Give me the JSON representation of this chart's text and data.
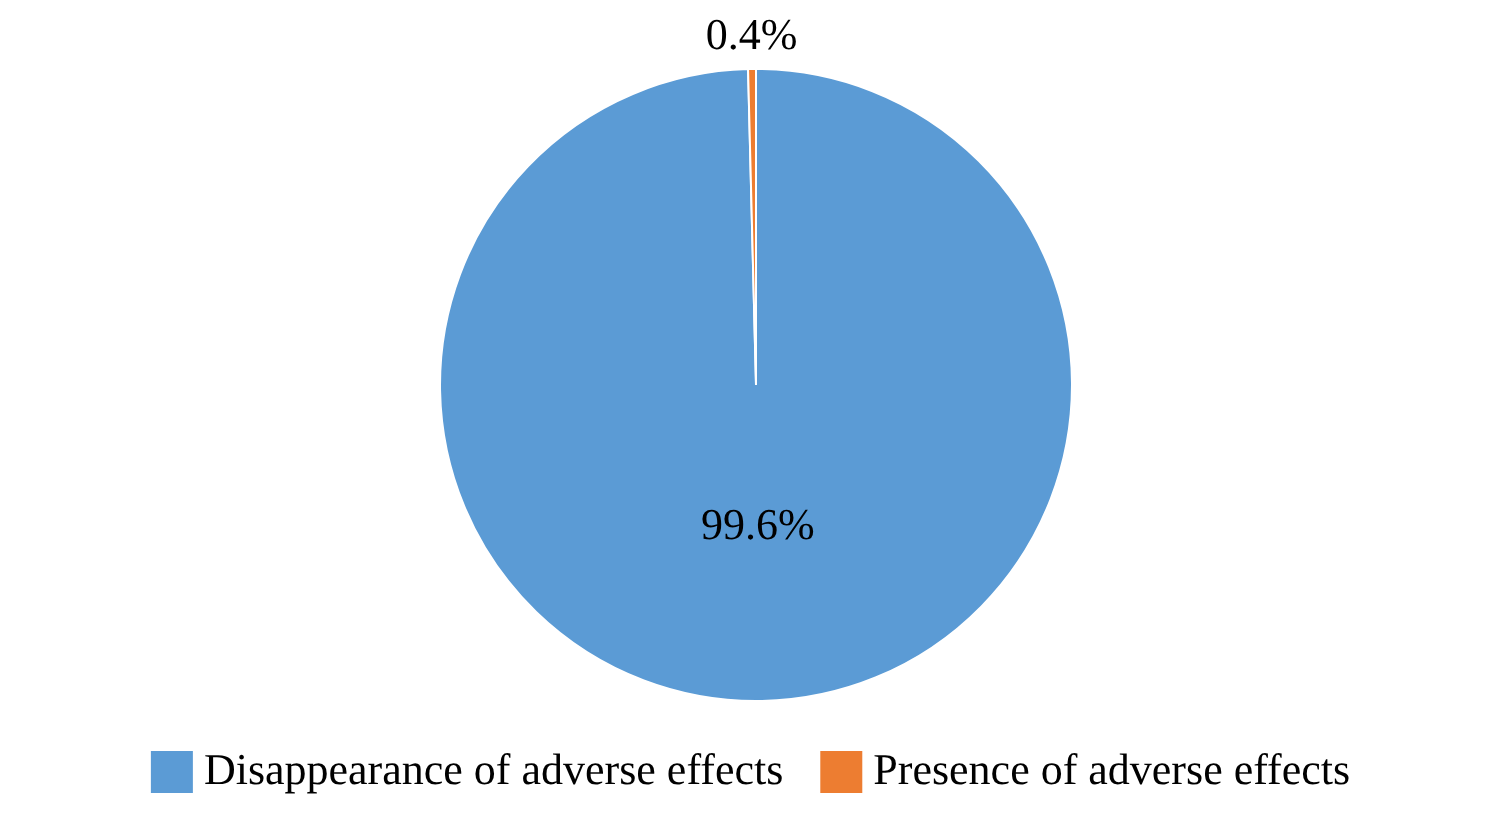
{
  "chart_data": {
    "type": "pie",
    "categories": [
      "Disappearance of adverse effects",
      "Presence of adverse effects"
    ],
    "values": [
      99.6,
      0.4
    ],
    "colors": [
      "#5b9bd5",
      "#ed7d31"
    ],
    "value_labels": [
      "99.6%",
      "0.4%"
    ],
    "legend": "bottom"
  }
}
